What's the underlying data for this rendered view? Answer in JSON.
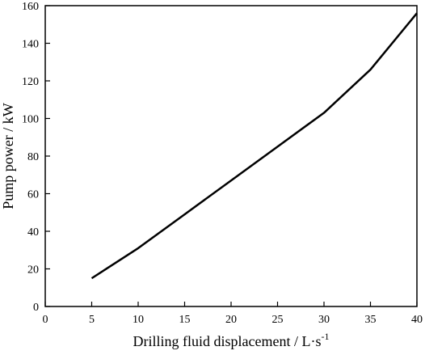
{
  "chart_data": {
    "type": "line",
    "xlabel": "Drilling fluid displacement / L·s",
    "xlabel_superscript": "-1",
    "ylabel": "Pump power / kW",
    "xlim": [
      0,
      40
    ],
    "ylim": [
      0,
      160
    ],
    "x_ticks": [
      0,
      5,
      10,
      15,
      20,
      25,
      30,
      35,
      40
    ],
    "y_ticks": [
      0,
      20,
      40,
      60,
      80,
      100,
      120,
      140,
      160
    ],
    "grid": false,
    "series": [
      {
        "x": [
          5,
          10,
          15,
          20,
          25,
          30,
          35,
          40
        ],
        "y": [
          15,
          31,
          49,
          67,
          85,
          103,
          126,
          156
        ],
        "color": "#000000"
      }
    ]
  }
}
